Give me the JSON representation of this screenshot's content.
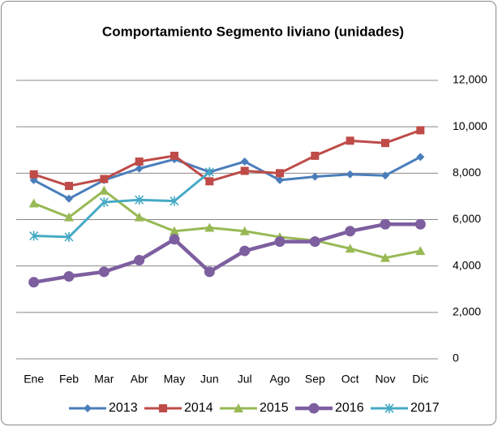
{
  "chart_data": {
    "type": "line",
    "title": "Comportamiento Segmento liviano (unidades)",
    "categories": [
      "Ene",
      "Feb",
      "Mar",
      "Abr",
      "May",
      "Jun",
      "Jul",
      "Ago",
      "Sep",
      "Oct",
      "Nov",
      "Dic"
    ],
    "series": [
      {
        "name": "2013",
        "color": "#4a7ebb",
        "marker": "diamond",
        "values": [
          7700,
          6900,
          7700,
          8200,
          8600,
          8050,
          8500,
          7700,
          7850,
          7950,
          7900,
          8700
        ]
      },
      {
        "name": "2014",
        "color": "#be4b48",
        "marker": "square",
        "values": [
          7950,
          7450,
          7750,
          8500,
          8750,
          7650,
          8100,
          8000,
          8750,
          9400,
          9300,
          9850
        ]
      },
      {
        "name": "2015",
        "color": "#98b954",
        "marker": "triangle",
        "values": [
          6700,
          6100,
          7250,
          6100,
          5500,
          5650,
          5500,
          5250,
          5100,
          4750,
          4350,
          4650
        ]
      },
      {
        "name": "2016",
        "color": "#7d5fa0",
        "marker": "circle",
        "values": [
          3300,
          3550,
          3750,
          4250,
          5150,
          3750,
          4650,
          5050,
          5050,
          5500,
          5800,
          5800
        ]
      },
      {
        "name": "2017",
        "color": "#46aac5",
        "marker": "star",
        "values": [
          5300,
          5250,
          6750,
          6850,
          6800,
          8050,
          null,
          null,
          null,
          null,
          null,
          null
        ]
      }
    ],
    "ylim": [
      0,
      12000
    ],
    "yticks": [
      0,
      {
        "value": 2000,
        "label": "2,000"
      },
      {
        "value": 4000,
        "label": "4,000"
      },
      {
        "value": 6000,
        "label": "6,000"
      },
      {
        "value": 8000,
        "label": "8,000"
      },
      {
        "value": 10000,
        "label": "10,000"
      },
      {
        "value": 12000,
        "label": "12,000"
      }
    ],
    "grid": true,
    "legend": "bottom"
  }
}
